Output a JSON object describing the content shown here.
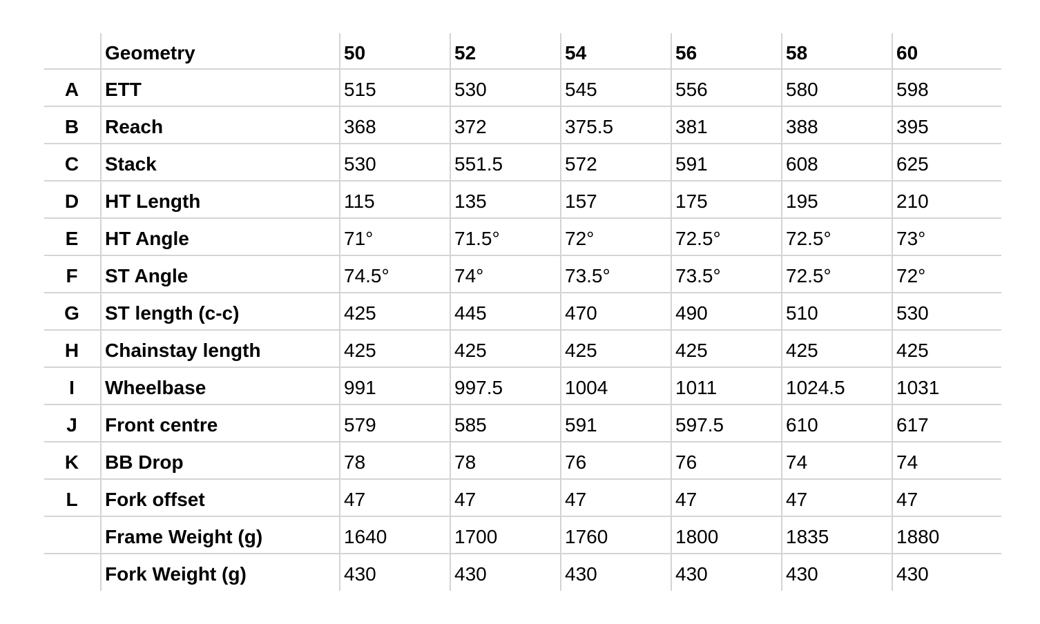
{
  "table": {
    "header": {
      "label": "Geometry",
      "sizes": [
        "50",
        "52",
        "54",
        "56",
        "58",
        "60"
      ]
    },
    "rows": [
      {
        "letter": "A",
        "label": "ETT",
        "values": [
          "515",
          "530",
          "545",
          "556",
          "580",
          "598"
        ]
      },
      {
        "letter": "B",
        "label": "Reach",
        "values": [
          "368",
          "372",
          "375.5",
          "381",
          "388",
          "395"
        ]
      },
      {
        "letter": "C",
        "label": "Stack",
        "values": [
          "530",
          "551.5",
          "572",
          "591",
          "608",
          "625"
        ]
      },
      {
        "letter": "D",
        "label": "HT Length",
        "values": [
          "115",
          "135",
          "157",
          "175",
          "195",
          "210"
        ]
      },
      {
        "letter": "E",
        "label": "HT Angle",
        "values": [
          "71°",
          "71.5°",
          "72°",
          "72.5°",
          "72.5°",
          "73°"
        ]
      },
      {
        "letter": "F",
        "label": "ST Angle",
        "values": [
          "74.5°",
          "74°",
          "73.5°",
          "73.5°",
          "72.5°",
          "72°"
        ]
      },
      {
        "letter": "G",
        "label": "ST length (c-c)",
        "values": [
          "425",
          "445",
          "470",
          "490",
          "510",
          "530"
        ]
      },
      {
        "letter": "H",
        "label": "Chainstay length",
        "values": [
          "425",
          "425",
          "425",
          "425",
          "425",
          "425"
        ]
      },
      {
        "letter": "I",
        "label": "Wheelbase",
        "values": [
          "991",
          "997.5",
          "1004",
          "1011",
          "1024.5",
          "1031"
        ]
      },
      {
        "letter": "J",
        "label": "Front centre",
        "values": [
          "579",
          "585",
          "591",
          "597.5",
          "610",
          "617"
        ]
      },
      {
        "letter": "K",
        "label": "BB Drop",
        "values": [
          "78",
          "78",
          "76",
          "76",
          "74",
          "74"
        ]
      },
      {
        "letter": "L",
        "label": "Fork offset",
        "values": [
          "47",
          "47",
          "47",
          "47",
          "47",
          "47"
        ]
      },
      {
        "letter": "",
        "label": "Frame Weight (g)",
        "values": [
          "1640",
          "1700",
          "1760",
          "1800",
          "1835",
          "1880"
        ]
      },
      {
        "letter": "",
        "label": "Fork Weight (g)",
        "values": [
          "430",
          "430",
          "430",
          "430",
          "430",
          "430"
        ]
      }
    ]
  }
}
